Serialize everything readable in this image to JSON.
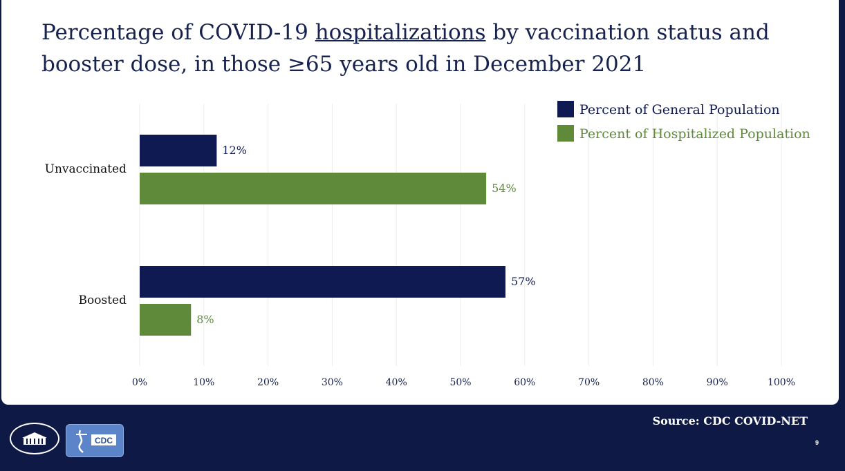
{
  "title": {
    "part1": "Percentage of COVID-19 ",
    "underlined": "hospitalizations",
    "part2": " by vaccination status and booster dose, in those ≥65 years old in December 2021"
  },
  "chart_data": {
    "type": "bar",
    "orientation": "horizontal",
    "categories": [
      "Unvaccinated",
      "Boosted"
    ],
    "series": [
      {
        "name": "Percent of General Population",
        "color": "#0f1a52",
        "values": [
          12,
          57
        ],
        "labels": [
          "12%",
          "57%"
        ]
      },
      {
        "name": "Percent of Hospitalized Population",
        "color": "#5e8a3a",
        "values": [
          54,
          8
        ],
        "labels": [
          "54%",
          "8%"
        ]
      }
    ],
    "xlim": [
      0,
      100
    ],
    "xticks": [
      "0%",
      "10%",
      "20%",
      "30%",
      "40%",
      "50%",
      "60%",
      "70%",
      "80%",
      "90%",
      "100%"
    ],
    "grid": true,
    "legend_position": "top-right"
  },
  "footer": {
    "source": "Source: CDC COVID-NET",
    "page_number": "9",
    "cdc_logo_text": "CDC"
  }
}
